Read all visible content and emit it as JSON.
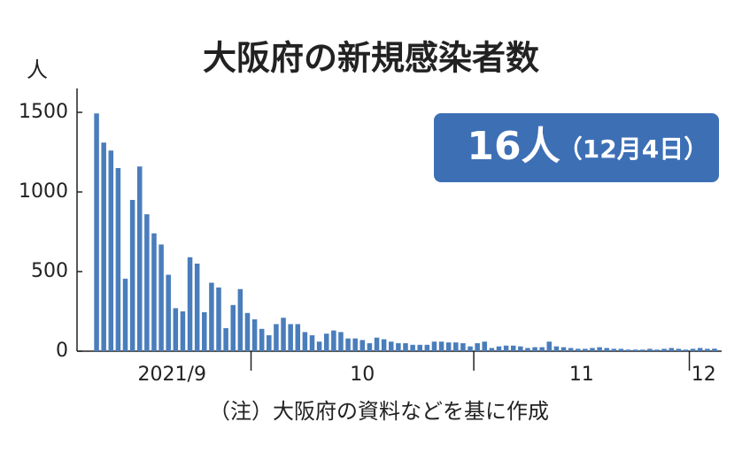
{
  "chart_data": {
    "type": "bar",
    "title": "大阪府の新規感染者数",
    "y_unit": "人",
    "note": "（注）大阪府の資料などを基に作成",
    "badge": {
      "value": "16人",
      "date": "（12月4日）"
    },
    "color": "#4a7dbb",
    "categories": [
      null,
      null,
      null,
      null,
      null,
      null,
      null,
      null,
      null,
      null,
      null,
      null,
      null,
      null,
      null,
      null,
      null,
      null,
      null,
      null,
      null,
      null,
      null,
      null,
      null,
      null,
      null,
      null,
      null,
      null,
      null,
      null,
      null,
      null,
      null,
      null,
      null,
      null,
      null,
      null,
      null,
      null,
      null,
      null,
      null,
      null,
      null,
      null,
      null,
      null,
      null,
      null,
      null,
      null,
      null,
      null,
      null,
      null,
      null,
      null,
      null,
      null,
      null,
      null,
      null,
      null,
      null,
      null,
      null,
      null,
      null,
      null,
      null,
      null,
      null,
      null,
      null,
      null,
      null,
      null,
      null,
      null,
      null,
      null,
      null,
      null,
      null
    ],
    "values": [
      1493,
      1310,
      1260,
      1150,
      455,
      950,
      1160,
      860,
      740,
      670,
      480,
      270,
      250,
      590,
      550,
      245,
      430,
      400,
      145,
      290,
      390,
      240,
      200,
      140,
      100,
      170,
      210,
      170,
      170,
      120,
      100,
      60,
      110,
      130,
      120,
      80,
      80,
      70,
      50,
      85,
      75,
      60,
      50,
      50,
      40,
      40,
      40,
      60,
      60,
      55,
      55,
      50,
      30,
      50,
      60,
      20,
      30,
      35,
      35,
      30,
      20,
      25,
      25,
      60,
      30,
      25,
      20,
      15,
      15,
      20,
      25,
      20,
      15,
      15,
      10,
      10,
      10,
      15,
      10,
      15,
      20,
      15,
      10,
      15,
      20,
      15,
      16
    ],
    "x_groups": [
      {
        "label": "2021/9",
        "count": 22
      },
      {
        "label": "10",
        "count": 31
      },
      {
        "label": "11",
        "count": 30
      },
      {
        "label": "12",
        "count": 4
      }
    ],
    "ylim": [
      0,
      1650
    ],
    "yticks": [
      0,
      500,
      1000,
      1500
    ]
  }
}
